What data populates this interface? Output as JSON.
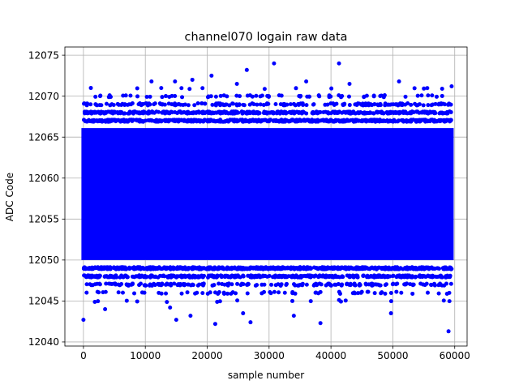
{
  "chart_data": {
    "type": "scatter",
    "title": "channel070 logain raw data",
    "xlabel": "sample number",
    "ylabel": "ADC Code",
    "xlim": [
      -3000,
      62000
    ],
    "ylim": [
      12039.5,
      12076
    ],
    "x_ticks": [
      0,
      10000,
      20000,
      30000,
      40000,
      50000,
      60000
    ],
    "x_tick_labels": [
      "0",
      "10000",
      "20000",
      "30000",
      "40000",
      "50000",
      "60000"
    ],
    "y_ticks": [
      12040,
      12045,
      12050,
      12055,
      12060,
      12065,
      12070,
      12075
    ],
    "y_tick_labels": [
      "12040",
      "12045",
      "12050",
      "12055",
      "12060",
      "12065",
      "12070",
      "12075"
    ],
    "grid": true,
    "marker_color": "#0000ff",
    "series": [
      {
        "n_samples": 59500,
        "core_range": [
          12050,
          12066
        ],
        "outliers": [
          {
            "x": 0,
            "y": 12042.7
          },
          {
            "x": 3500,
            "y": 12044.0
          },
          {
            "x": 14000,
            "y": 12044.2
          },
          {
            "x": 15000,
            "y": 12042.7
          },
          {
            "x": 17300,
            "y": 12043.2
          },
          {
            "x": 21300,
            "y": 12042.2
          },
          {
            "x": 25800,
            "y": 12043.5
          },
          {
            "x": 27000,
            "y": 12042.4
          },
          {
            "x": 34000,
            "y": 12043.2
          },
          {
            "x": 38300,
            "y": 12042.3
          },
          {
            "x": 49700,
            "y": 12043.5
          },
          {
            "x": 59000,
            "y": 12041.3
          },
          {
            "x": 20700,
            "y": 12072.5
          },
          {
            "x": 26400,
            "y": 12073.2
          },
          {
            "x": 30800,
            "y": 12074.0
          },
          {
            "x": 41300,
            "y": 12074.0
          },
          {
            "x": 59500,
            "y": 12071.2
          },
          {
            "x": 1200,
            "y": 12071.0
          },
          {
            "x": 11000,
            "y": 12071.8
          },
          {
            "x": 14800,
            "y": 12071.8
          },
          {
            "x": 17600,
            "y": 12072.0
          },
          {
            "x": 24800,
            "y": 12071.5
          },
          {
            "x": 36000,
            "y": 12071.8
          },
          {
            "x": 43000,
            "y": 12071.5
          },
          {
            "x": 51000,
            "y": 12071.8
          }
        ]
      }
    ]
  }
}
